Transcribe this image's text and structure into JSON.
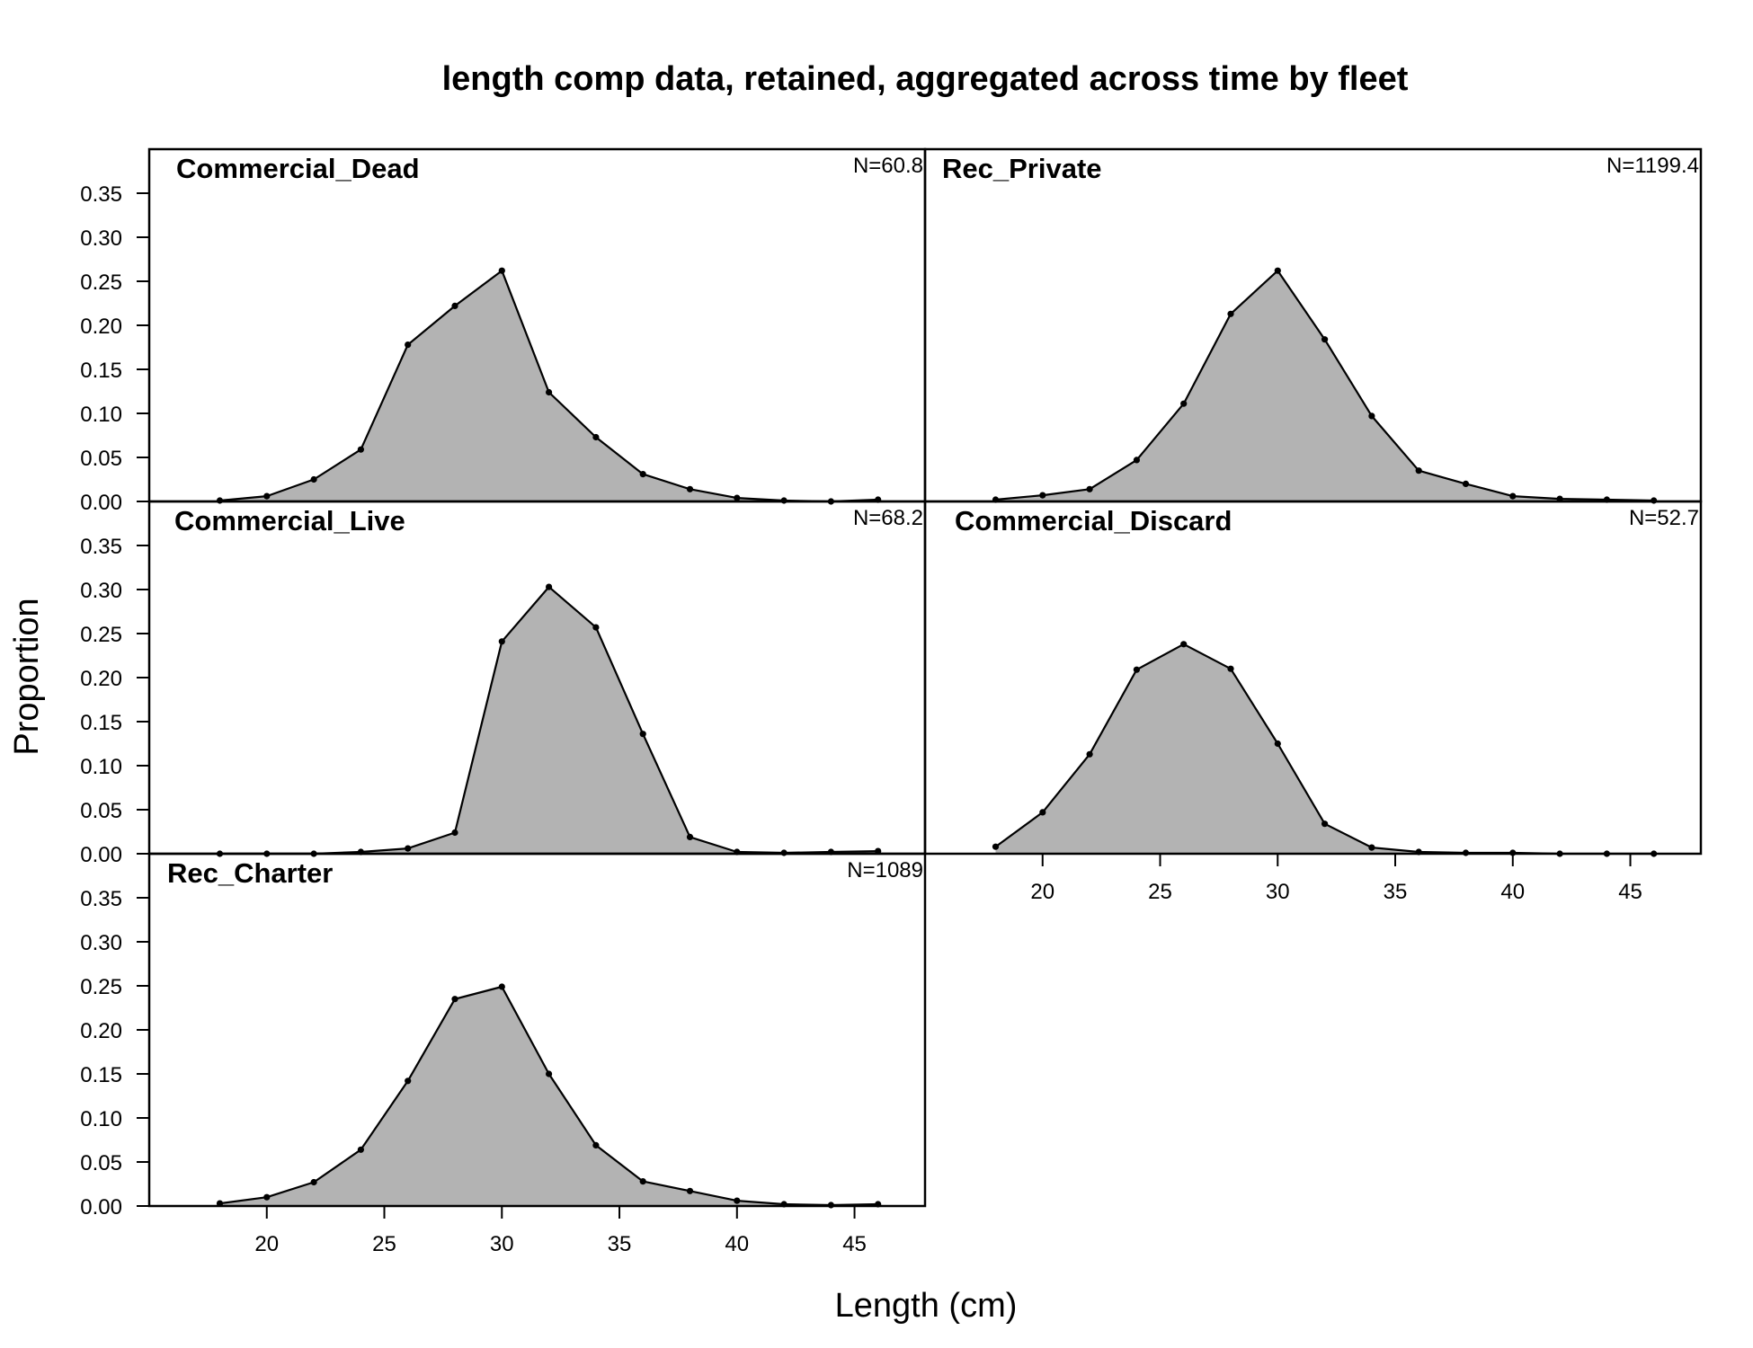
{
  "chart_data": {
    "type": "area",
    "title": "length comp data, retained, aggregated across time by fleet",
    "xlabel": "Length (cm)",
    "ylabel": "Proportion",
    "xlim": [
      15,
      48
    ],
    "ylim": [
      0,
      0.4
    ],
    "xticks": [
      20,
      25,
      30,
      35,
      40,
      45
    ],
    "yticks": [
      0.0,
      0.05,
      0.1,
      0.15,
      0.2,
      0.25,
      0.3,
      0.35
    ],
    "ytick_labels": [
      "0.00",
      "0.05",
      "0.10",
      "0.15",
      "0.20",
      "0.25",
      "0.30",
      "0.35"
    ],
    "fill_color": "#b3b3b3",
    "line_color": "#000000",
    "panels": [
      {
        "name": "Commercial_Dead",
        "n_label": "N=60.8",
        "x": [
          18,
          20,
          22,
          24,
          26,
          28,
          30,
          32,
          34,
          36,
          38,
          40,
          42,
          44,
          46
        ],
        "values": [
          0.001,
          0.006,
          0.025,
          0.059,
          0.178,
          0.222,
          0.262,
          0.124,
          0.073,
          0.031,
          0.014,
          0.004,
          0.001,
          0.0,
          0.002
        ]
      },
      {
        "name": "Rec_Private",
        "n_label": "N=1199.4",
        "x": [
          18,
          20,
          22,
          24,
          26,
          28,
          30,
          32,
          34,
          36,
          38,
          40,
          42,
          44,
          46
        ],
        "values": [
          0.002,
          0.007,
          0.014,
          0.047,
          0.111,
          0.213,
          0.262,
          0.184,
          0.097,
          0.035,
          0.02,
          0.006,
          0.003,
          0.002,
          0.001
        ]
      },
      {
        "name": "Commercial_Live",
        "n_label": "N=68.2",
        "x": [
          18,
          20,
          22,
          24,
          26,
          28,
          30,
          32,
          34,
          36,
          38,
          40,
          42,
          44,
          46
        ],
        "values": [
          0.0,
          0.0,
          0.0,
          0.002,
          0.006,
          0.024,
          0.241,
          0.303,
          0.257,
          0.136,
          0.019,
          0.002,
          0.001,
          0.002,
          0.003
        ]
      },
      {
        "name": "Commercial_Discard",
        "n_label": "N=52.7",
        "x": [
          18,
          20,
          22,
          24,
          26,
          28,
          30,
          32,
          34,
          36,
          38,
          40,
          42,
          44,
          46
        ],
        "values": [
          0.008,
          0.047,
          0.113,
          0.209,
          0.238,
          0.21,
          0.125,
          0.034,
          0.007,
          0.002,
          0.001,
          0.001,
          0.0,
          0.0,
          0.0
        ]
      },
      {
        "name": "Rec_Charter",
        "n_label": "N=1089",
        "x": [
          18,
          20,
          22,
          24,
          26,
          28,
          30,
          32,
          34,
          36,
          38,
          40,
          42,
          44,
          46
        ],
        "values": [
          0.003,
          0.01,
          0.027,
          0.064,
          0.142,
          0.235,
          0.249,
          0.15,
          0.069,
          0.028,
          0.017,
          0.006,
          0.002,
          0.001,
          0.002
        ]
      }
    ]
  }
}
